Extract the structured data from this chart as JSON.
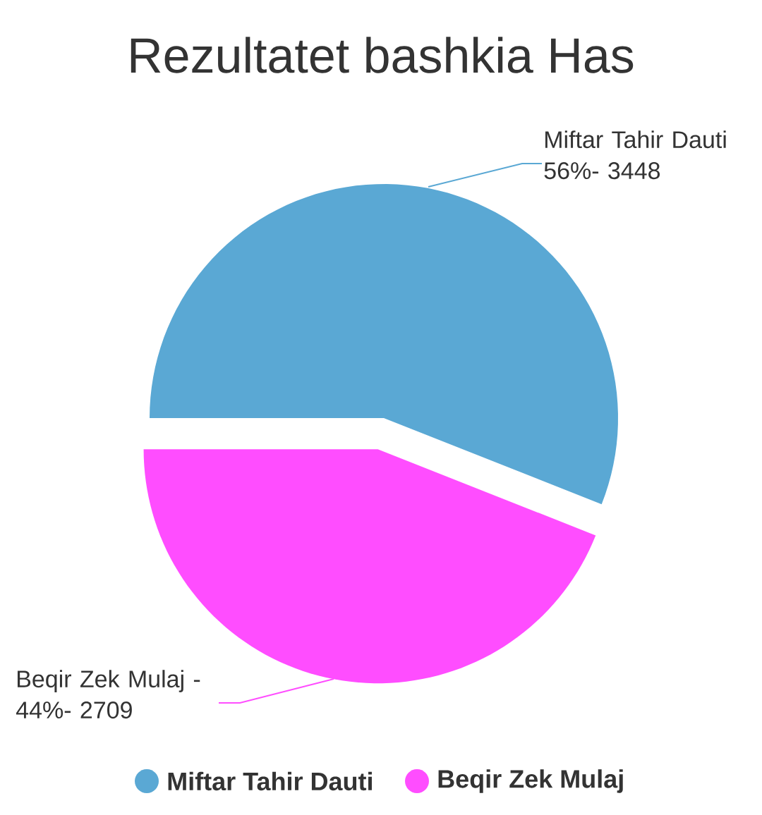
{
  "chart_data": {
    "type": "pie",
    "title": "Rezultatet bashkia Has",
    "categories": [
      "Miftar Tahir Dauti",
      "Beqir Zek Mulaj"
    ],
    "values": [
      56,
      44
    ],
    "colors": [
      "#5aa8d4",
      "#ff4dff"
    ],
    "annotations": [
      "Miftar Tahir Dauti 56%- 3448",
      "Beqir Zek Mulaj - 44%- 2709"
    ],
    "legend": "bottom"
  }
}
